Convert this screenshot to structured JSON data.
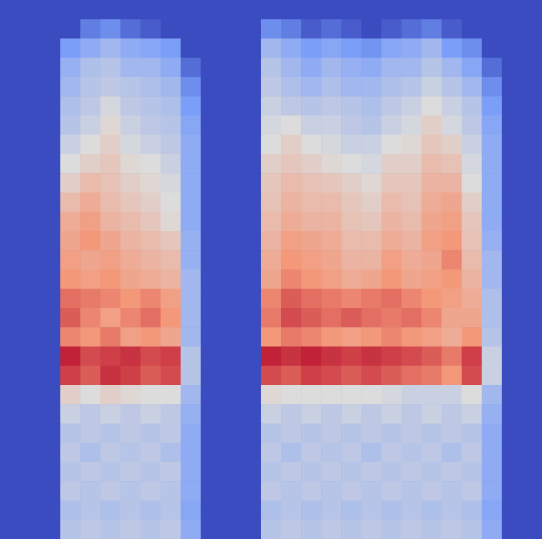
{
  "chart_data": {
    "type": "heatmap",
    "tick_labels": false,
    "zlim": [
      0,
      100
    ],
    "cells": [
      [
        0,
        0,
        0,
        0,
        0,
        0,
        0,
        0,
        0,
        0,
        0,
        0,
        0,
        0,
        0,
        0,
        0,
        0,
        0,
        0,
        0,
        0,
        0,
        0,
        0,
        0,
        0
      ],
      [
        0,
        0,
        0,
        0,
        15,
        20,
        10,
        5,
        0,
        0,
        0,
        0,
        0,
        20,
        15,
        5,
        10,
        5,
        0,
        5,
        10,
        15,
        5,
        0,
        0,
        0,
        0
      ],
      [
        0,
        0,
        0,
        25,
        30,
        35,
        30,
        28,
        25,
        0,
        0,
        0,
        0,
        35,
        30,
        25,
        28,
        25,
        22,
        28,
        30,
        35,
        25,
        20,
        0,
        0,
        0
      ],
      [
        0,
        0,
        0,
        32,
        38,
        40,
        35,
        35,
        30,
        10,
        0,
        0,
        0,
        40,
        35,
        30,
        35,
        32,
        30,
        35,
        35,
        40,
        35,
        28,
        10,
        0,
        0
      ],
      [
        0,
        0,
        0,
        35,
        40,
        42,
        40,
        38,
        35,
        20,
        0,
        0,
        0,
        42,
        38,
        35,
        38,
        35,
        35,
        38,
        40,
        45,
        40,
        35,
        20,
        0,
        0
      ],
      [
        0,
        0,
        0,
        38,
        42,
        48,
        42,
        40,
        38,
        25,
        0,
        0,
        0,
        45,
        42,
        40,
        42,
        40,
        38,
        42,
        45,
        50,
        45,
        40,
        25,
        0,
        0
      ],
      [
        0,
        0,
        0,
        40,
        45,
        52,
        45,
        42,
        40,
        28,
        0,
        0,
        0,
        48,
        50,
        45,
        45,
        42,
        40,
        45,
        48,
        55,
        48,
        42,
        28,
        0,
        0
      ],
      [
        0,
        0,
        0,
        45,
        50,
        55,
        48,
        45,
        42,
        30,
        0,
        0,
        0,
        50,
        55,
        50,
        48,
        45,
        45,
        50,
        52,
        58,
        55,
        45,
        30,
        0,
        0
      ],
      [
        0,
        0,
        0,
        50,
        55,
        58,
        52,
        50,
        45,
        30,
        0,
        0,
        0,
        55,
        58,
        55,
        52,
        50,
        48,
        55,
        55,
        62,
        60,
        48,
        30,
        0,
        0
      ],
      [
        0,
        0,
        0,
        55,
        62,
        60,
        55,
        52,
        48,
        30,
        0,
        0,
        0,
        58,
        62,
        60,
        58,
        55,
        52,
        58,
        58,
        65,
        65,
        50,
        30,
        0,
        0
      ],
      [
        0,
        0,
        0,
        62,
        68,
        62,
        58,
        55,
        50,
        30,
        0,
        0,
        0,
        60,
        65,
        62,
        62,
        58,
        55,
        62,
        60,
        68,
        70,
        55,
        30,
        0,
        0
      ],
      [
        0,
        0,
        0,
        68,
        72,
        65,
        62,
        58,
        52,
        30,
        0,
        0,
        0,
        62,
        68,
        65,
        65,
        60,
        58,
        65,
        62,
        70,
        72,
        58,
        30,
        0,
        0
      ],
      [
        0,
        0,
        0,
        70,
        75,
        70,
        65,
        62,
        58,
        32,
        0,
        0,
        0,
        65,
        72,
        70,
        68,
        62,
        62,
        68,
        65,
        72,
        75,
        60,
        32,
        0,
        0
      ],
      [
        0,
        0,
        0,
        72,
        70,
        72,
        68,
        65,
        62,
        32,
        0,
        0,
        0,
        68,
        75,
        72,
        70,
        65,
        65,
        72,
        68,
        70,
        78,
        62,
        35,
        0,
        0
      ],
      [
        0,
        0,
        0,
        75,
        72,
        75,
        70,
        68,
        65,
        35,
        0,
        0,
        0,
        70,
        78,
        75,
        72,
        68,
        70,
        75,
        70,
        72,
        75,
        65,
        35,
        0,
        0
      ],
      [
        0,
        0,
        0,
        82,
        80,
        78,
        75,
        78,
        72,
        35,
        0,
        0,
        0,
        78,
        85,
        82,
        80,
        78,
        80,
        82,
        78,
        75,
        72,
        68,
        38,
        0,
        0
      ],
      [
        0,
        0,
        0,
        85,
        78,
        72,
        78,
        82,
        75,
        35,
        0,
        0,
        0,
        80,
        88,
        85,
        82,
        85,
        82,
        80,
        82,
        78,
        70,
        70,
        38,
        0,
        0
      ],
      [
        0,
        0,
        0,
        78,
        75,
        80,
        72,
        75,
        70,
        35,
        0,
        0,
        0,
        75,
        80,
        78,
        75,
        72,
        75,
        78,
        75,
        72,
        68,
        75,
        40,
        0,
        0
      ],
      [
        0,
        0,
        0,
        95,
        88,
        90,
        92,
        88,
        90,
        40,
        0,
        0,
        0,
        95,
        92,
        95,
        92,
        90,
        92,
        90,
        88,
        85,
        80,
        90,
        45,
        0,
        0
      ],
      [
        0,
        0,
        0,
        90,
        85,
        92,
        90,
        85,
        88,
        40,
        0,
        0,
        0,
        88,
        85,
        90,
        88,
        85,
        88,
        85,
        82,
        80,
        75,
        88,
        45,
        0,
        0
      ],
      [
        0,
        0,
        0,
        55,
        50,
        55,
        52,
        50,
        50,
        35,
        0,
        0,
        0,
        52,
        50,
        50,
        50,
        50,
        50,
        48,
        45,
        45,
        45,
        50,
        35,
        0,
        0
      ],
      [
        0,
        0,
        0,
        45,
        42,
        45,
        42,
        45,
        42,
        32,
        0,
        0,
        0,
        45,
        42,
        45,
        42,
        45,
        42,
        45,
        42,
        45,
        42,
        45,
        32,
        0,
        0
      ],
      [
        0,
        0,
        0,
        40,
        42,
        40,
        42,
        40,
        42,
        30,
        0,
        0,
        0,
        40,
        42,
        40,
        42,
        40,
        42,
        40,
        42,
        40,
        42,
        40,
        30,
        0,
        0
      ],
      [
        0,
        0,
        0,
        42,
        38,
        42,
        40,
        42,
        38,
        30,
        0,
        0,
        0,
        42,
        38,
        42,
        40,
        42,
        38,
        42,
        40,
        42,
        38,
        42,
        30,
        0,
        0
      ],
      [
        0,
        0,
        0,
        40,
        42,
        40,
        42,
        40,
        42,
        30,
        0,
        0,
        0,
        40,
        42,
        40,
        42,
        40,
        42,
        40,
        42,
        40,
        42,
        40,
        30,
        0,
        0
      ],
      [
        0,
        0,
        0,
        42,
        40,
        42,
        40,
        42,
        40,
        30,
        0,
        0,
        0,
        42,
        40,
        42,
        40,
        42,
        40,
        42,
        40,
        42,
        40,
        42,
        30,
        0,
        0
      ],
      [
        0,
        0,
        0,
        38,
        40,
        38,
        40,
        38,
        40,
        28,
        0,
        0,
        0,
        38,
        40,
        38,
        40,
        38,
        40,
        38,
        40,
        38,
        40,
        38,
        28,
        0,
        0
      ],
      [
        0,
        0,
        0,
        40,
        42,
        40,
        42,
        40,
        42,
        30,
        0,
        0,
        0,
        40,
        42,
        40,
        42,
        40,
        42,
        40,
        42,
        40,
        42,
        40,
        30,
        0,
        0
      ]
    ]
  }
}
